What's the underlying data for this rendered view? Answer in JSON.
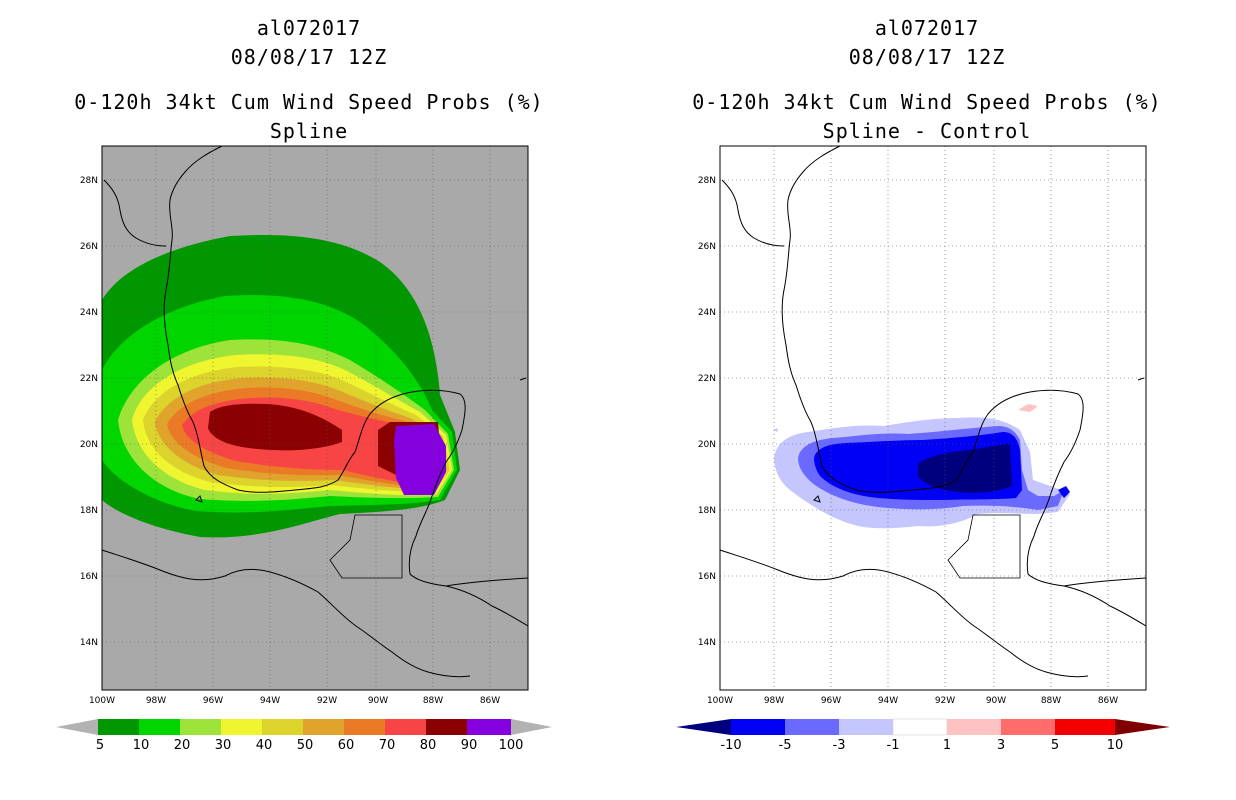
{
  "left_panel": {
    "storm_id": "al072017",
    "datetime": "08/08/17 12Z",
    "product": "0-120h 34kt Cum Wind Speed Probs (%)",
    "subtitle": "Spline",
    "lat_labels": [
      "28N",
      "26N",
      "24N",
      "22N",
      "20N",
      "18N",
      "16N",
      "14N"
    ],
    "lon_labels": [
      "100W",
      "98W",
      "96W",
      "94W",
      "92W",
      "90W",
      "88W",
      "86W"
    ],
    "colorbar": {
      "labels": [
        "5",
        "10",
        "20",
        "30",
        "40",
        "50",
        "60",
        "70",
        "80",
        "90",
        "100"
      ],
      "colors": [
        "#009700",
        "#00d500",
        "#9de33a",
        "#eff52f",
        "#dcd32c",
        "#e0a42c",
        "#ea7a26",
        "#f74545",
        "#8b0000",
        "#8500df"
      ],
      "end_color": "#b2b2b2"
    },
    "background_color": "#a9a9a9"
  },
  "right_panel": {
    "storm_id": "al072017",
    "datetime": "08/08/17 12Z",
    "product": "0-120h 34kt Cum Wind Speed Probs (%)",
    "subtitle": "Spline - Control",
    "lat_labels": [
      "28N",
      "26N",
      "24N",
      "22N",
      "20N",
      "18N",
      "16N",
      "14N"
    ],
    "lon_labels": [
      "100W",
      "98W",
      "96W",
      "94W",
      "92W",
      "90W",
      "88W",
      "86W"
    ],
    "colorbar": {
      "labels": [
        "-10",
        "-5",
        "-3",
        "-1",
        "1",
        "3",
        "5",
        "10"
      ],
      "colors": [
        "#00007f",
        "#0000f5",
        "#6a6aff",
        "#c6c6ff",
        "#ffffff",
        "#ffc2c2",
        "#ff6c6c",
        "#f50000",
        "#7f0000"
      ]
    },
    "background_color": "#ffffff"
  }
}
